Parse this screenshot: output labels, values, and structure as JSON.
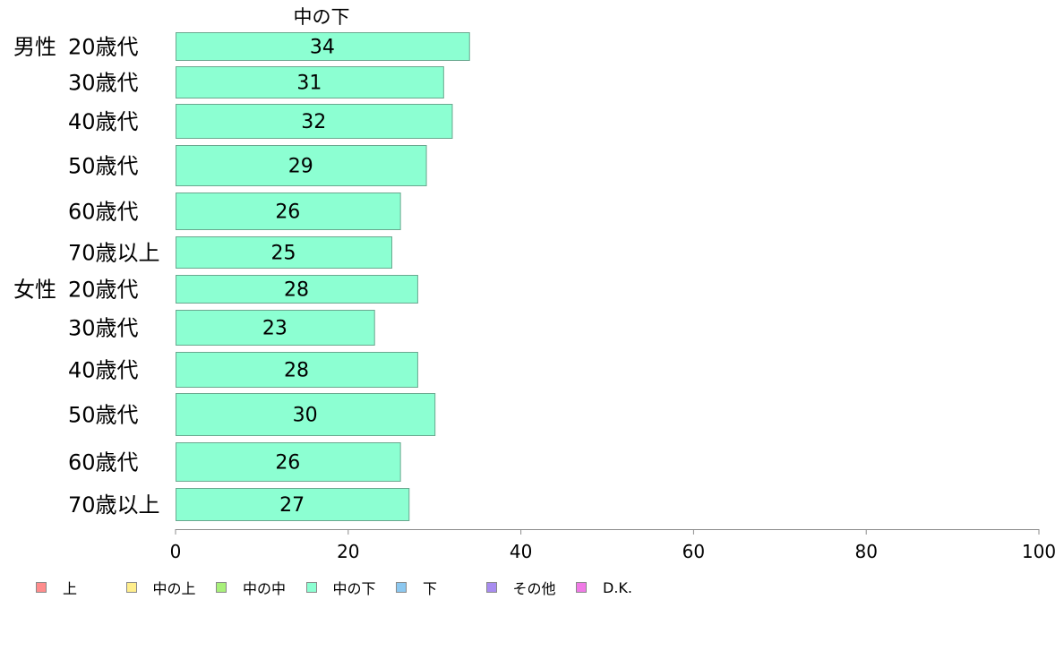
{
  "chart_data": {
    "type": "bar",
    "orientation": "horizontal",
    "title": "中の下",
    "groups": [
      {
        "name": "男性",
        "categories": [
          "20歳代",
          "30歳代",
          "40歳代",
          "50歳代",
          "60歳代",
          "70歳以上"
        ],
        "values": [
          34,
          31,
          32,
          29,
          26,
          25
        ]
      },
      {
        "name": "女性",
        "categories": [
          "20歳代",
          "30歳代",
          "40歳代",
          "50歳代",
          "60歳代",
          "70歳以上"
        ],
        "values": [
          28,
          23,
          28,
          30,
          26,
          27
        ]
      }
    ],
    "xlim": [
      0,
      100
    ],
    "xticks": [
      "0",
      "20",
      "40",
      "60",
      "80",
      "100"
    ],
    "grid": false,
    "bar_color": "#8cffd2",
    "bar_edge_color": "#6aa88f",
    "legend_position": "bottom",
    "legend": [
      {
        "label": "上",
        "color": "#ff8c8c"
      },
      {
        "label": "中の上",
        "color": "#ffee8c"
      },
      {
        "label": "中の中",
        "color": "#a8f07a"
      },
      {
        "label": "中の下",
        "color": "#8cffd2"
      },
      {
        "label": "下",
        "color": "#8cc8f0"
      },
      {
        "label": "その他",
        "color": "#a88cf0"
      },
      {
        "label": "D.K.",
        "color": "#f07ae6"
      }
    ]
  }
}
